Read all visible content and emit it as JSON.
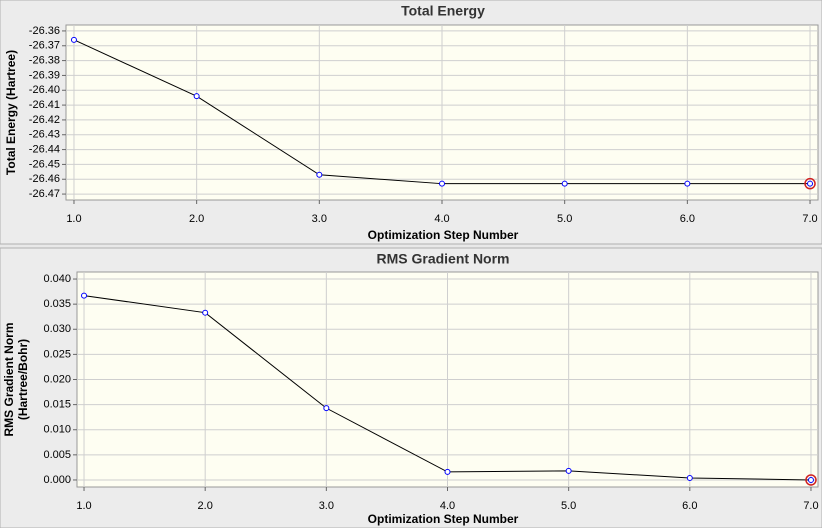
{
  "chart_data": [
    {
      "type": "line",
      "title": "Total Energy",
      "x_label": "Optimization Step Number",
      "y_label": "Total Energy (Hartree)",
      "x": [
        1,
        2,
        3,
        4,
        5,
        6,
        7
      ],
      "series": [
        {
          "color": "#000000",
          "marker_color": "#0000ff",
          "values": [
            -26.366,
            -26.404,
            -26.457,
            -26.463,
            -26.463,
            -26.463,
            -26.463
          ]
        }
      ],
      "xlim": [
        0.935,
        7.065
      ],
      "xticks": [
        {
          "value": 1,
          "label": "1.0"
        },
        {
          "value": 2,
          "label": "2.0"
        },
        {
          "value": 3,
          "label": "3.0"
        },
        {
          "value": 4,
          "label": "4.0"
        },
        {
          "value": 5,
          "label": "5.0"
        },
        {
          "value": 6,
          "label": "6.0"
        },
        {
          "value": 7,
          "label": "7.0"
        }
      ],
      "ylim": [
        -26.474,
        -26.356
      ],
      "yticks": [
        -26.36,
        -26.37,
        -26.38,
        -26.39,
        {
          "value": -26.4,
          "label": "-26.40"
        },
        -26.41,
        -26.42,
        -26.43,
        -26.44,
        -26.45,
        -26.46,
        -26.47
      ],
      "grid": true
    },
    {
      "type": "line",
      "title": "RMS Gradient Norm",
      "x_label": "Optimization Step Number",
      "y_label": [
        "RMS Gradient Norm",
        "(Hartree/Bohr)"
      ],
      "x": [
        1,
        2,
        3,
        4,
        5,
        6,
        7
      ],
      "series": [
        {
          "color": "#000000",
          "marker_color": "#0000ff",
          "values": [
            0.0367,
            0.0333,
            0.0143,
            0.0016,
            0.0018,
            0.0004,
            0.0
          ]
        }
      ],
      "xlim": [
        0.942,
        7.058
      ],
      "xticks": [
        {
          "value": 1,
          "label": "1.0"
        },
        {
          "value": 2,
          "label": "2.0"
        },
        {
          "value": 3,
          "label": "3.0"
        },
        {
          "value": 4,
          "label": "4.0"
        },
        {
          "value": 5,
          "label": "5.0"
        },
        {
          "value": 6,
          "label": "6.0"
        },
        {
          "value": 7,
          "label": "7.0"
        }
      ],
      "ylim": [
        -0.0014,
        0.0414
      ],
      "yticks": [
        {
          "value": 0,
          "label": "0.000"
        },
        0.005,
        {
          "value": 0.01,
          "label": "0.010"
        },
        0.015,
        {
          "value": 0.02,
          "label": "0.020"
        },
        0.025,
        {
          "value": 0.03,
          "label": "0.030"
        },
        0.035,
        {
          "value": 0.04,
          "label": "0.040"
        }
      ],
      "grid": true
    }
  ]
}
